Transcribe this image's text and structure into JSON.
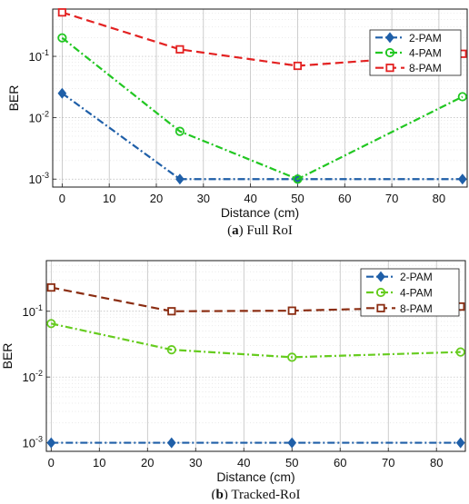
{
  "chart_data": [
    {
      "type": "line",
      "x": [
        0,
        25,
        50,
        85
      ],
      "xlabel": "Distance (cm)",
      "ylabel": "BER",
      "xlim": [
        -2,
        86
      ],
      "xticks": [
        0,
        10,
        20,
        30,
        40,
        50,
        60,
        70,
        80
      ],
      "yscale": "log",
      "yticks": [
        0.001,
        0.01,
        0.1
      ],
      "ytick_labels": [
        {
          "base": "10",
          "exp": "-3"
        },
        {
          "base": "10",
          "exp": "-2"
        },
        {
          "base": "10",
          "exp": "-1"
        }
      ],
      "grid": true,
      "legend_position": "top-right",
      "caption": {
        "label": "a",
        "text": "Full RoI"
      },
      "series": [
        {
          "name": "2-PAM",
          "values": [
            0.025,
            0.001,
            0.001,
            0.001
          ],
          "color": "#1f5fa8",
          "marker": "diamond",
          "dash": "8 3 2 3"
        },
        {
          "name": "4-PAM",
          "values": [
            0.2,
            0.006,
            0.001,
            0.022
          ],
          "color": "#22c722",
          "marker": "circle",
          "dash": "8 3 2 3"
        },
        {
          "name": "8-PAM",
          "values": [
            0.52,
            0.13,
            0.07,
            0.11
          ],
          "color": "#e32222",
          "marker": "square",
          "dash": "9 5"
        }
      ]
    },
    {
      "type": "line",
      "x": [
        0,
        25,
        50,
        85
      ],
      "xlabel": "Distance (cm)",
      "ylabel": "BER",
      "xlim": [
        -1,
        86
      ],
      "xticks": [
        0,
        10,
        20,
        30,
        40,
        50,
        60,
        70,
        80
      ],
      "yscale": "log",
      "yticks": [
        0.001,
        0.01,
        0.1
      ],
      "ytick_labels": [
        {
          "base": "10",
          "exp": "-3"
        },
        {
          "base": "10",
          "exp": "-2"
        },
        {
          "base": "10",
          "exp": "-1"
        }
      ],
      "grid": true,
      "legend_position": "top-right",
      "caption": {
        "label": "b",
        "text": "Tracked-RoI"
      },
      "series": [
        {
          "name": "2-PAM",
          "values": [
            0.001,
            0.001,
            0.001,
            0.001
          ],
          "color": "#1f5fa8",
          "marker": "diamond",
          "dash": "8 3 2 3"
        },
        {
          "name": "4-PAM",
          "values": [
            0.065,
            0.026,
            0.02,
            0.024
          ],
          "color": "#66cc1f",
          "marker": "circle",
          "dash": "8 3 2 3"
        },
        {
          "name": "8-PAM",
          "values": [
            0.23,
            0.1,
            0.102,
            0.118
          ],
          "color": "#8b2d12",
          "marker": "square",
          "dash": "9 5"
        }
      ]
    }
  ]
}
